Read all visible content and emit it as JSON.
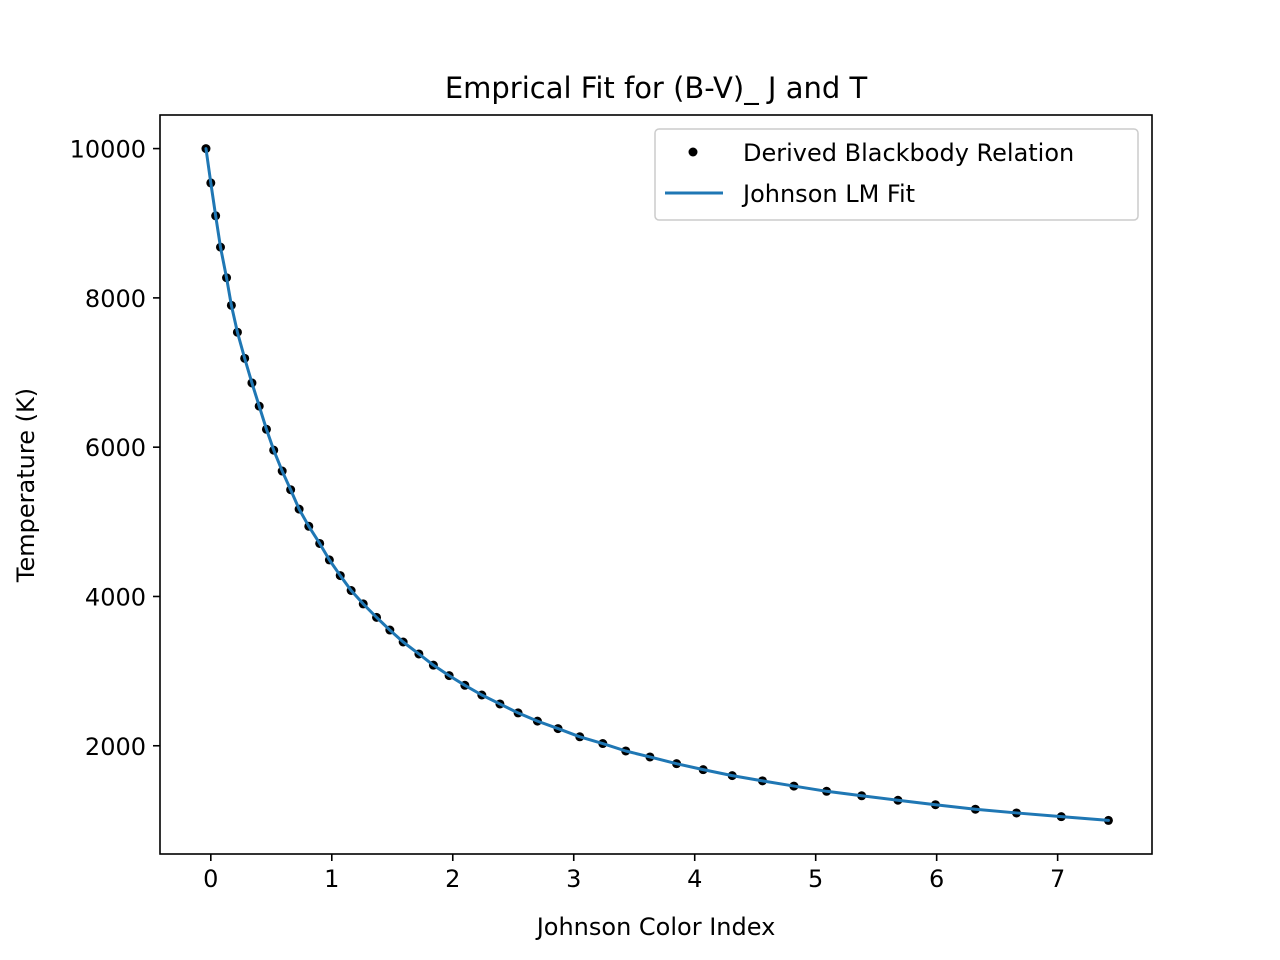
{
  "chart_data": {
    "type": "scatter",
    "title": "Emprical Fit for (B-V)_ J and T",
    "xlabel": "Johnson Color Index",
    "ylabel": "Temperature (K)",
    "xlim": [
      -0.42,
      7.78
    ],
    "ylim": [
      550,
      10450
    ],
    "x_ticks": [
      0,
      1,
      2,
      3,
      4,
      5,
      6,
      7
    ],
    "x_tick_labels": [
      "0",
      "1",
      "2",
      "3",
      "4",
      "5",
      "6",
      "7"
    ],
    "y_ticks": [
      2000,
      4000,
      6000,
      8000,
      10000
    ],
    "y_tick_labels": [
      "2000",
      "4000",
      "6000",
      "8000",
      "10000"
    ],
    "grid": false,
    "legend_position": "top-right",
    "series": [
      {
        "name": "Derived Blackbody Relation",
        "style": "markers",
        "color": "#000000",
        "points": [
          [
            -0.04,
            10000
          ],
          [
            0.0,
            9540
          ],
          [
            0.04,
            9100
          ],
          [
            0.08,
            8680
          ],
          [
            0.13,
            8270
          ],
          [
            0.17,
            7900
          ],
          [
            0.22,
            7540
          ],
          [
            0.28,
            7190
          ],
          [
            0.34,
            6860
          ],
          [
            0.4,
            6550
          ],
          [
            0.46,
            6240
          ],
          [
            0.52,
            5960
          ],
          [
            0.59,
            5680
          ],
          [
            0.66,
            5430
          ],
          [
            0.73,
            5170
          ],
          [
            0.81,
            4940
          ],
          [
            0.9,
            4710
          ],
          [
            0.98,
            4490
          ],
          [
            1.07,
            4280
          ],
          [
            1.16,
            4080
          ],
          [
            1.26,
            3900
          ],
          [
            1.37,
            3720
          ],
          [
            1.48,
            3550
          ],
          [
            1.59,
            3390
          ],
          [
            1.72,
            3230
          ],
          [
            1.84,
            3080
          ],
          [
            1.97,
            2940
          ],
          [
            2.1,
            2810
          ],
          [
            2.24,
            2680
          ],
          [
            2.39,
            2560
          ],
          [
            2.54,
            2440
          ],
          [
            2.7,
            2330
          ],
          [
            2.87,
            2230
          ],
          [
            3.05,
            2120
          ],
          [
            3.24,
            2030
          ],
          [
            3.43,
            1930
          ],
          [
            3.63,
            1850
          ],
          [
            3.85,
            1760
          ],
          [
            4.07,
            1680
          ],
          [
            4.31,
            1600
          ],
          [
            4.56,
            1530
          ],
          [
            4.82,
            1460
          ],
          [
            5.09,
            1390
          ],
          [
            5.38,
            1330
          ],
          [
            5.68,
            1270
          ],
          [
            5.99,
            1210
          ],
          [
            6.32,
            1150
          ],
          [
            6.66,
            1100
          ],
          [
            7.03,
            1050
          ],
          [
            7.42,
            1000
          ]
        ]
      },
      {
        "name": "Johnson LM Fit",
        "style": "line",
        "color": "#1f77b4",
        "points": [
          [
            -0.04,
            10000
          ],
          [
            0.0,
            9540
          ],
          [
            0.04,
            9100
          ],
          [
            0.08,
            8680
          ],
          [
            0.13,
            8270
          ],
          [
            0.17,
            7900
          ],
          [
            0.22,
            7540
          ],
          [
            0.28,
            7190
          ],
          [
            0.34,
            6860
          ],
          [
            0.4,
            6550
          ],
          [
            0.46,
            6240
          ],
          [
            0.52,
            5960
          ],
          [
            0.59,
            5680
          ],
          [
            0.66,
            5430
          ],
          [
            0.73,
            5170
          ],
          [
            0.81,
            4940
          ],
          [
            0.9,
            4710
          ],
          [
            0.98,
            4490
          ],
          [
            1.07,
            4280
          ],
          [
            1.16,
            4080
          ],
          [
            1.26,
            3900
          ],
          [
            1.37,
            3720
          ],
          [
            1.48,
            3550
          ],
          [
            1.59,
            3390
          ],
          [
            1.72,
            3230
          ],
          [
            1.84,
            3080
          ],
          [
            1.97,
            2940
          ],
          [
            2.1,
            2810
          ],
          [
            2.24,
            2680
          ],
          [
            2.39,
            2560
          ],
          [
            2.54,
            2440
          ],
          [
            2.7,
            2330
          ],
          [
            2.87,
            2230
          ],
          [
            3.05,
            2120
          ],
          [
            3.24,
            2030
          ],
          [
            3.43,
            1930
          ],
          [
            3.63,
            1850
          ],
          [
            3.85,
            1760
          ],
          [
            4.07,
            1680
          ],
          [
            4.31,
            1600
          ],
          [
            4.56,
            1530
          ],
          [
            4.82,
            1460
          ],
          [
            5.09,
            1390
          ],
          [
            5.38,
            1330
          ],
          [
            5.68,
            1270
          ],
          [
            5.99,
            1210
          ],
          [
            6.32,
            1150
          ],
          [
            6.66,
            1100
          ],
          [
            7.03,
            1050
          ],
          [
            7.42,
            1000
          ]
        ]
      }
    ]
  }
}
